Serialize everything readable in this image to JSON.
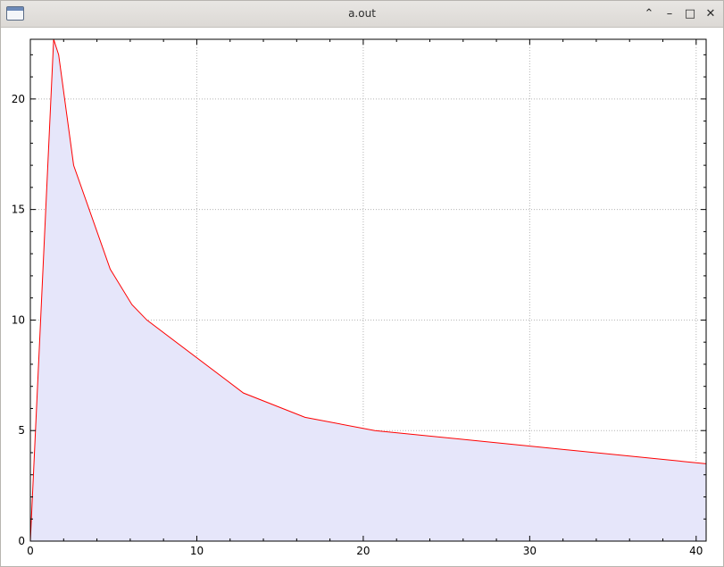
{
  "window": {
    "title": "a.out",
    "controls": {
      "shade_glyph": "⌃",
      "minimize_glyph": "–",
      "maximize_glyph": "□",
      "close_glyph": "✕"
    }
  },
  "chart_data": {
    "type": "area",
    "title": "",
    "xlabel": "",
    "ylabel": "",
    "xlim": [
      0,
      40.6
    ],
    "ylim": [
      0,
      22.7
    ],
    "x_ticks": [
      0,
      10,
      20,
      30,
      40
    ],
    "y_ticks": [
      0,
      5,
      10,
      15,
      20
    ],
    "grid": true,
    "grid_style": "dotted",
    "line_color": "#ff0000",
    "fill_color": "#e6e6fa",
    "series": [
      {
        "x": [
          0,
          1.4,
          1.7,
          2.6,
          4.8,
          6.1,
          7.0,
          12.8,
          16.5,
          20.7,
          40.6
        ],
        "y": [
          0,
          22.7,
          22.0,
          17.0,
          12.3,
          10.7,
          10.0,
          6.7,
          5.6,
          5.0,
          3.5
        ]
      }
    ]
  }
}
